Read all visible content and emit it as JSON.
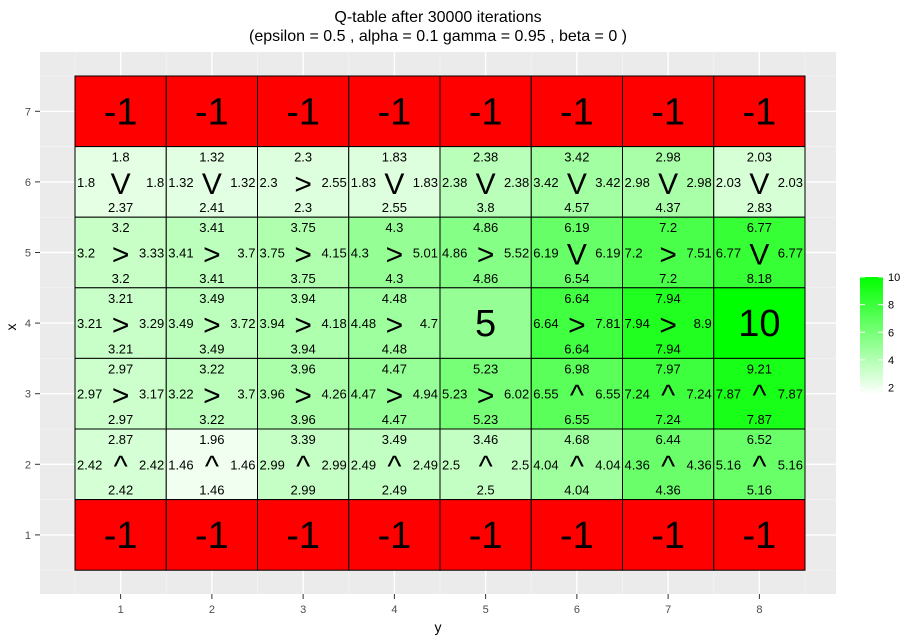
{
  "chart_data": {
    "type": "heatmap",
    "title": "Q-table after  30000  iterations",
    "subtitle": "(epsilon =  0.5 , alpha =  0.1 gamma =  0.95 , beta =  0 )",
    "xlabel": "y",
    "ylabel": "x",
    "x_ticks": [
      "1",
      "2",
      "3",
      "4",
      "5",
      "6",
      "7",
      "8"
    ],
    "y_ticks": [
      "1",
      "2",
      "3",
      "4",
      "5",
      "6",
      "7"
    ],
    "xlim": [
      0.5,
      8.5
    ],
    "ylim": [
      0.5,
      7.5
    ],
    "grid": true,
    "legend": {
      "position": "right",
      "ticks": [
        "2",
        "4",
        "6",
        "8",
        "10"
      ],
      "min": 1.46,
      "max": 10,
      "low_color": "#ffffff",
      "high_color": "#00ff00"
    },
    "terminal_color": "#ff0000",
    "rows": [
      {
        "x": 7,
        "cells": [
          {
            "y": 1,
            "label": "-1",
            "terminal": true
          },
          {
            "y": 2,
            "label": "-1",
            "terminal": true
          },
          {
            "y": 3,
            "label": "-1",
            "terminal": true
          },
          {
            "y": 4,
            "label": "-1",
            "terminal": true
          },
          {
            "y": 5,
            "label": "-1",
            "terminal": true
          },
          {
            "y": 6,
            "label": "-1",
            "terminal": true
          },
          {
            "y": 7,
            "label": "-1",
            "terminal": true
          },
          {
            "y": 8,
            "label": "-1",
            "terminal": true
          }
        ]
      },
      {
        "x": 6,
        "cells": [
          {
            "y": 1,
            "value": 2.37,
            "arrow": "V",
            "up": "1.8",
            "down": "2.37",
            "left": "1.8",
            "right": "1.8"
          },
          {
            "y": 2,
            "value": 2.41,
            "arrow": "V",
            "up": "1.32",
            "down": "2.41",
            "left": "1.32",
            "right": "1.32"
          },
          {
            "y": 3,
            "value": 2.55,
            "arrow": ">",
            "up": "2.3",
            "down": "2.3",
            "left": "2.3",
            "right": "2.55"
          },
          {
            "y": 4,
            "value": 2.55,
            "arrow": "V",
            "up": "1.83",
            "down": "2.55",
            "left": "1.83",
            "right": "1.83"
          },
          {
            "y": 5,
            "value": 3.8,
            "arrow": "V",
            "up": "2.38",
            "down": "3.8",
            "left": "2.38",
            "right": "2.38"
          },
          {
            "y": 6,
            "value": 4.57,
            "arrow": "V",
            "up": "3.42",
            "down": "4.57",
            "left": "3.42",
            "right": "3.42"
          },
          {
            "y": 7,
            "value": 4.37,
            "arrow": "V",
            "up": "2.98",
            "down": "4.37",
            "left": "2.98",
            "right": "2.98"
          },
          {
            "y": 8,
            "value": 2.83,
            "arrow": "V",
            "up": "2.03",
            "down": "2.83",
            "left": "2.03",
            "right": "2.03"
          }
        ]
      },
      {
        "x": 5,
        "cells": [
          {
            "y": 1,
            "value": 3.33,
            "arrow": ">",
            "up": "3.2",
            "down": "3.2",
            "left": "3.2",
            "right": "3.33"
          },
          {
            "y": 2,
            "value": 3.7,
            "arrow": ">",
            "up": "3.41",
            "down": "3.41",
            "left": "3.41",
            "right": "3.7"
          },
          {
            "y": 3,
            "value": 4.15,
            "arrow": ">",
            "up": "3.75",
            "down": "3.75",
            "left": "3.75",
            "right": "4.15"
          },
          {
            "y": 4,
            "value": 5.01,
            "arrow": ">",
            "up": "4.3",
            "down": "4.3",
            "left": "4.3",
            "right": "5.01"
          },
          {
            "y": 5,
            "value": 5.52,
            "arrow": ">",
            "up": "4.86",
            "down": "4.86",
            "left": "4.86",
            "right": "5.52"
          },
          {
            "y": 6,
            "value": 6.54,
            "arrow": "V",
            "up": "6.19",
            "down": "6.54",
            "left": "6.19",
            "right": "6.19"
          },
          {
            "y": 7,
            "value": 7.51,
            "arrow": ">",
            "up": "7.2",
            "down": "7.2",
            "left": "7.2",
            "right": "7.51"
          },
          {
            "y": 8,
            "value": 8.18,
            "arrow": "V",
            "up": "6.77",
            "down": "8.18",
            "left": "6.77",
            "right": "6.77"
          }
        ]
      },
      {
        "x": 4,
        "cells": [
          {
            "y": 1,
            "value": 3.29,
            "arrow": ">",
            "up": "3.21",
            "down": "3.21",
            "left": "3.21",
            "right": "3.29"
          },
          {
            "y": 2,
            "value": 3.72,
            "arrow": ">",
            "up": "3.49",
            "down": "3.49",
            "left": "3.49",
            "right": "3.72"
          },
          {
            "y": 3,
            "value": 4.18,
            "arrow": ">",
            "up": "3.94",
            "down": "3.94",
            "left": "3.94",
            "right": "4.18"
          },
          {
            "y": 4,
            "value": 4.7,
            "arrow": ">",
            "up": "4.48",
            "down": "4.48",
            "left": "4.48",
            "right": "4.7"
          },
          {
            "y": 5,
            "value": 5,
            "label": "5",
            "terminal": false,
            "goal": true
          },
          {
            "y": 6,
            "value": 7.81,
            "arrow": ">",
            "up": "6.64",
            "down": "6.64",
            "left": "6.64",
            "right": "7.81"
          },
          {
            "y": 7,
            "value": 8.9,
            "arrow": ">",
            "up": "7.94",
            "down": "7.94",
            "left": "7.94",
            "right": "8.9"
          },
          {
            "y": 8,
            "value": 10,
            "label": "10",
            "terminal": false,
            "goal": true
          }
        ]
      },
      {
        "x": 3,
        "cells": [
          {
            "y": 1,
            "value": 3.17,
            "arrow": ">",
            "up": "2.97",
            "down": "2.97",
            "left": "2.97",
            "right": "3.17"
          },
          {
            "y": 2,
            "value": 3.7,
            "arrow": ">",
            "up": "3.22",
            "down": "3.22",
            "left": "3.22",
            "right": "3.7"
          },
          {
            "y": 3,
            "value": 4.26,
            "arrow": ">",
            "up": "3.96",
            "down": "3.96",
            "left": "3.96",
            "right": "4.26"
          },
          {
            "y": 4,
            "value": 4.94,
            "arrow": ">",
            "up": "4.47",
            "down": "4.47",
            "left": "4.47",
            "right": "4.94"
          },
          {
            "y": 5,
            "value": 6.02,
            "arrow": ">",
            "up": "5.23",
            "down": "5.23",
            "left": "5.23",
            "right": "6.02"
          },
          {
            "y": 6,
            "value": 6.98,
            "arrow": "^",
            "up": "6.98",
            "down": "6.55",
            "left": "6.55",
            "right": "6.55"
          },
          {
            "y": 7,
            "value": 7.97,
            "arrow": "^",
            "up": "7.97",
            "down": "7.24",
            "left": "7.24",
            "right": "7.24"
          },
          {
            "y": 8,
            "value": 9.21,
            "arrow": "^",
            "up": "9.21",
            "down": "7.87",
            "left": "7.87",
            "right": "7.87"
          }
        ]
      },
      {
        "x": 2,
        "cells": [
          {
            "y": 1,
            "value": 2.87,
            "arrow": "^",
            "up": "2.87",
            "down": "2.42",
            "left": "2.42",
            "right": "2.42"
          },
          {
            "y": 2,
            "value": 1.96,
            "arrow": "^",
            "up": "1.96",
            "down": "1.46",
            "left": "1.46",
            "right": "1.46"
          },
          {
            "y": 3,
            "value": 3.39,
            "arrow": "^",
            "up": "3.39",
            "down": "2.99",
            "left": "2.99",
            "right": "2.99"
          },
          {
            "y": 4,
            "value": 3.49,
            "arrow": "^",
            "up": "3.49",
            "down": "2.49",
            "left": "2.49",
            "right": "2.49"
          },
          {
            "y": 5,
            "value": 3.46,
            "arrow": "^",
            "up": "3.46",
            "down": "2.5",
            "left": "2.5",
            "right": "2.5"
          },
          {
            "y": 6,
            "value": 4.68,
            "arrow": "^",
            "up": "4.68",
            "down": "4.04",
            "left": "4.04",
            "right": "4.04"
          },
          {
            "y": 7,
            "value": 6.44,
            "arrow": "^",
            "up": "6.44",
            "down": "4.36",
            "left": "4.36",
            "right": "4.36"
          },
          {
            "y": 8,
            "value": 6.52,
            "arrow": "^",
            "up": "6.52",
            "down": "5.16",
            "left": "5.16",
            "right": "5.16"
          }
        ]
      },
      {
        "x": 1,
        "cells": [
          {
            "y": 1,
            "label": "-1",
            "terminal": true
          },
          {
            "y": 2,
            "label": "-1",
            "terminal": true
          },
          {
            "y": 3,
            "label": "-1",
            "terminal": true
          },
          {
            "y": 4,
            "label": "-1",
            "terminal": true
          },
          {
            "y": 5,
            "label": "-1",
            "terminal": true
          },
          {
            "y": 6,
            "label": "-1",
            "terminal": true
          },
          {
            "y": 7,
            "label": "-1",
            "terminal": true
          },
          {
            "y": 8,
            "label": "-1",
            "terminal": true
          }
        ]
      }
    ]
  }
}
